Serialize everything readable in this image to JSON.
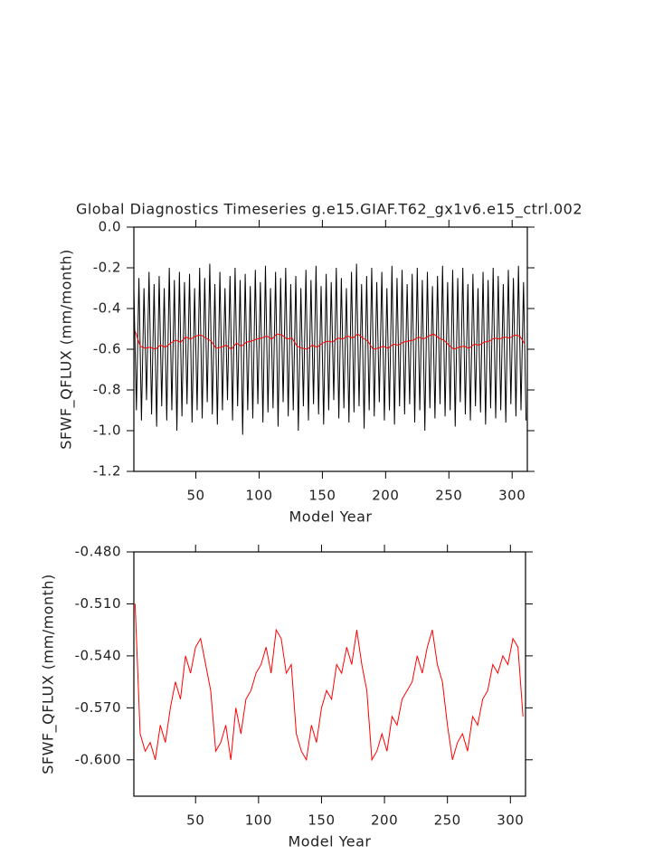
{
  "chart_data": [
    {
      "type": "line",
      "title": "Global Diagnostics Timeseries g.e15.GIAF.T62_gx1v6.e15_ctrl.002",
      "x_label": "Model Year",
      "y_label": "SFWF_QFLUX (mm/month)",
      "xlim": [
        1,
        312
      ],
      "xticks": [
        50,
        100,
        150,
        200,
        250,
        300
      ],
      "ylim": [
        -1.2,
        0
      ],
      "yticks": [
        -1.2,
        {
          "value": -1,
          "label": "-1.0"
        },
        -0.8,
        -0.6,
        -0.4,
        -0.2,
        {
          "value": 0,
          "label": "0.0"
        }
      ],
      "series": [
        {
          "color": "#000000",
          "x": [
            1,
            3,
            5,
            7,
            9,
            11,
            13,
            15,
            17,
            19,
            21,
            23,
            25,
            27,
            29,
            31,
            33,
            35,
            37,
            39,
            41,
            43,
            45,
            47,
            49,
            51,
            53,
            55,
            57,
            59,
            61,
            63,
            65,
            67,
            69,
            71,
            73,
            75,
            77,
            79,
            81,
            83,
            85,
            87,
            89,
            91,
            93,
            95,
            97,
            99,
            101,
            103,
            105,
            107,
            109,
            111,
            113,
            115,
            117,
            119,
            121,
            123,
            125,
            127,
            129,
            131,
            133,
            135,
            137,
            139,
            141,
            143,
            145,
            147,
            149,
            151,
            153,
            155,
            157,
            159,
            161,
            163,
            165,
            167,
            169,
            171,
            173,
            175,
            177,
            179,
            181,
            183,
            185,
            187,
            189,
            191,
            193,
            195,
            197,
            199,
            201,
            203,
            205,
            207,
            209,
            211,
            213,
            215,
            217,
            219,
            221,
            223,
            225,
            227,
            229,
            231,
            233,
            235,
            237,
            239,
            241,
            243,
            245,
            247,
            249,
            251,
            253,
            255,
            257,
            259,
            261,
            263,
            265,
            267,
            269,
            271,
            273,
            275,
            277,
            279,
            281,
            283,
            285,
            287,
            289,
            291,
            293,
            295,
            297,
            299,
            301,
            303,
            305,
            307,
            309,
            311
          ],
          "values": [
            -0.3,
            -0.9,
            -0.25,
            -0.95,
            -0.3,
            -0.85,
            -0.22,
            -0.92,
            -0.28,
            -0.98,
            -0.24,
            -0.88,
            -0.3,
            -0.95,
            -0.2,
            -0.9,
            -0.26,
            -1.0,
            -0.22,
            -0.93,
            -0.27,
            -0.87,
            -0.23,
            -0.96,
            -0.3,
            -0.9,
            -0.2,
            -0.94,
            -0.25,
            -0.86,
            -0.18,
            -0.92,
            -0.28,
            -0.97,
            -0.22,
            -0.9,
            -0.3,
            -0.85,
            -0.24,
            -0.95,
            -0.2,
            -0.88,
            -0.26,
            -1.02,
            -0.23,
            -0.9,
            -0.29,
            -0.94,
            -0.21,
            -0.87,
            -0.27,
            -0.96,
            -0.19,
            -0.91,
            -0.3,
            -0.89,
            -0.22,
            -0.98,
            -0.25,
            -0.86,
            -0.2,
            -0.93,
            -0.28,
            -0.9,
            -0.24,
            -1.0,
            -0.3,
            -0.88,
            -0.21,
            -0.95,
            -0.26,
            -0.87,
            -0.19,
            -0.92,
            -0.29,
            -0.97,
            -0.23,
            -0.9,
            -0.27,
            -0.85,
            -0.2,
            -0.94,
            -0.25,
            -0.89,
            -0.3,
            -0.96,
            -0.22,
            -0.91,
            -0.18,
            -0.88,
            -0.28,
            -0.99,
            -0.24,
            -0.9,
            -0.2,
            -0.93,
            -0.27,
            -0.86,
            -0.22,
            -0.95,
            -0.3,
            -0.9,
            -0.19,
            -0.97,
            -0.25,
            -0.88,
            -0.21,
            -0.92,
            -0.28,
            -0.87,
            -0.23,
            -0.96,
            -0.2,
            -0.9,
            -0.26,
            -1.0,
            -0.22,
            -0.89,
            -0.29,
            -0.94,
            -0.24,
            -0.87,
            -0.19,
            -0.93,
            -0.27,
            -0.9,
            -0.21,
            -0.98,
            -0.25,
            -0.86,
            -0.2,
            -0.92,
            -0.28,
            -0.95,
            -0.23,
            -0.88,
            -0.3,
            -0.91,
            -0.22,
            -0.97,
            -0.26,
            -0.89,
            -0.2,
            -0.94,
            -0.24,
            -0.9,
            -0.28,
            -0.96,
            -0.21,
            -0.87,
            -0.25,
            -0.93,
            -0.19,
            -0.9,
            -0.27,
            -0.95
          ]
        },
        {
          "color": "#ff0000",
          "x": [
            2,
            6,
            10,
            14,
            18,
            22,
            26,
            30,
            34,
            38,
            42,
            46,
            50,
            54,
            58,
            62,
            66,
            70,
            74,
            78,
            82,
            86,
            90,
            94,
            98,
            102,
            106,
            110,
            114,
            118,
            122,
            126,
            130,
            134,
            138,
            142,
            146,
            150,
            154,
            158,
            162,
            166,
            170,
            174,
            178,
            182,
            186,
            190,
            194,
            198,
            202,
            206,
            210,
            214,
            218,
            222,
            226,
            230,
            234,
            238,
            242,
            246,
            250,
            254,
            258,
            262,
            266,
            270,
            274,
            278,
            282,
            286,
            290,
            294,
            298,
            302,
            306,
            310
          ],
          "values": [
            -0.51,
            -0.585,
            -0.595,
            -0.59,
            -0.6,
            -0.58,
            -0.59,
            -0.57,
            -0.555,
            -0.565,
            -0.54,
            -0.55,
            -0.535,
            -0.53,
            -0.545,
            -0.56,
            -0.595,
            -0.59,
            -0.58,
            -0.6,
            -0.57,
            -0.585,
            -0.565,
            -0.56,
            -0.55,
            -0.545,
            -0.535,
            -0.55,
            -0.525,
            -0.53,
            -0.55,
            -0.545,
            -0.585,
            -0.595,
            -0.6,
            -0.58,
            -0.59,
            -0.57,
            -0.56,
            -0.565,
            -0.545,
            -0.55,
            -0.535,
            -0.545,
            -0.525,
            -0.545,
            -0.56,
            -0.6,
            -0.595,
            -0.585,
            -0.595,
            -0.575,
            -0.58,
            -0.565,
            -0.56,
            -0.555,
            -0.54,
            -0.55,
            -0.535,
            -0.525,
            -0.545,
            -0.555,
            -0.58,
            -0.6,
            -0.59,
            -0.585,
            -0.595,
            -0.575,
            -0.58,
            -0.565,
            -0.56,
            -0.545,
            -0.55,
            -0.54,
            -0.545,
            -0.53,
            -0.535,
            -0.575
          ]
        }
      ]
    },
    {
      "type": "line",
      "x_label": "Model Year",
      "y_label": "SFWF_QFLUX (mm/month)",
      "xlim": [
        1,
        312
      ],
      "xticks": [
        50,
        100,
        150,
        200,
        250,
        300
      ],
      "ylim": [
        -0.621,
        -0.48
      ],
      "yticks": [
        {
          "value": -0.6,
          "label": "-0.600"
        },
        {
          "value": -0.57,
          "label": "-0.570"
        },
        {
          "value": -0.54,
          "label": "-0.540"
        },
        {
          "value": -0.51,
          "label": "-0.510"
        },
        {
          "value": -0.48,
          "label": "-0.480"
        }
      ],
      "series": [
        {
          "color": "#ff0000",
          "x": [
            2,
            6,
            10,
            14,
            18,
            22,
            26,
            30,
            34,
            38,
            42,
            46,
            50,
            54,
            58,
            62,
            66,
            70,
            74,
            78,
            82,
            86,
            90,
            94,
            98,
            102,
            106,
            110,
            114,
            118,
            122,
            126,
            130,
            134,
            138,
            142,
            146,
            150,
            154,
            158,
            162,
            166,
            170,
            174,
            178,
            182,
            186,
            190,
            194,
            198,
            202,
            206,
            210,
            214,
            218,
            222,
            226,
            230,
            234,
            238,
            242,
            246,
            250,
            254,
            258,
            262,
            266,
            270,
            274,
            278,
            282,
            286,
            290,
            294,
            298,
            302,
            306,
            310
          ],
          "values": [
            -0.51,
            -0.585,
            -0.595,
            -0.59,
            -0.6,
            -0.58,
            -0.59,
            -0.57,
            -0.555,
            -0.565,
            -0.54,
            -0.55,
            -0.535,
            -0.53,
            -0.545,
            -0.56,
            -0.595,
            -0.59,
            -0.58,
            -0.6,
            -0.57,
            -0.585,
            -0.565,
            -0.56,
            -0.55,
            -0.545,
            -0.535,
            -0.55,
            -0.525,
            -0.53,
            -0.55,
            -0.545,
            -0.585,
            -0.595,
            -0.6,
            -0.58,
            -0.59,
            -0.57,
            -0.56,
            -0.565,
            -0.545,
            -0.55,
            -0.535,
            -0.545,
            -0.525,
            -0.545,
            -0.56,
            -0.6,
            -0.595,
            -0.585,
            -0.595,
            -0.575,
            -0.58,
            -0.565,
            -0.56,
            -0.555,
            -0.54,
            -0.55,
            -0.535,
            -0.525,
            -0.545,
            -0.555,
            -0.58,
            -0.6,
            -0.59,
            -0.585,
            -0.595,
            -0.575,
            -0.58,
            -0.565,
            -0.56,
            -0.545,
            -0.55,
            -0.54,
            -0.545,
            -0.53,
            -0.535,
            -0.575
          ]
        }
      ]
    }
  ]
}
